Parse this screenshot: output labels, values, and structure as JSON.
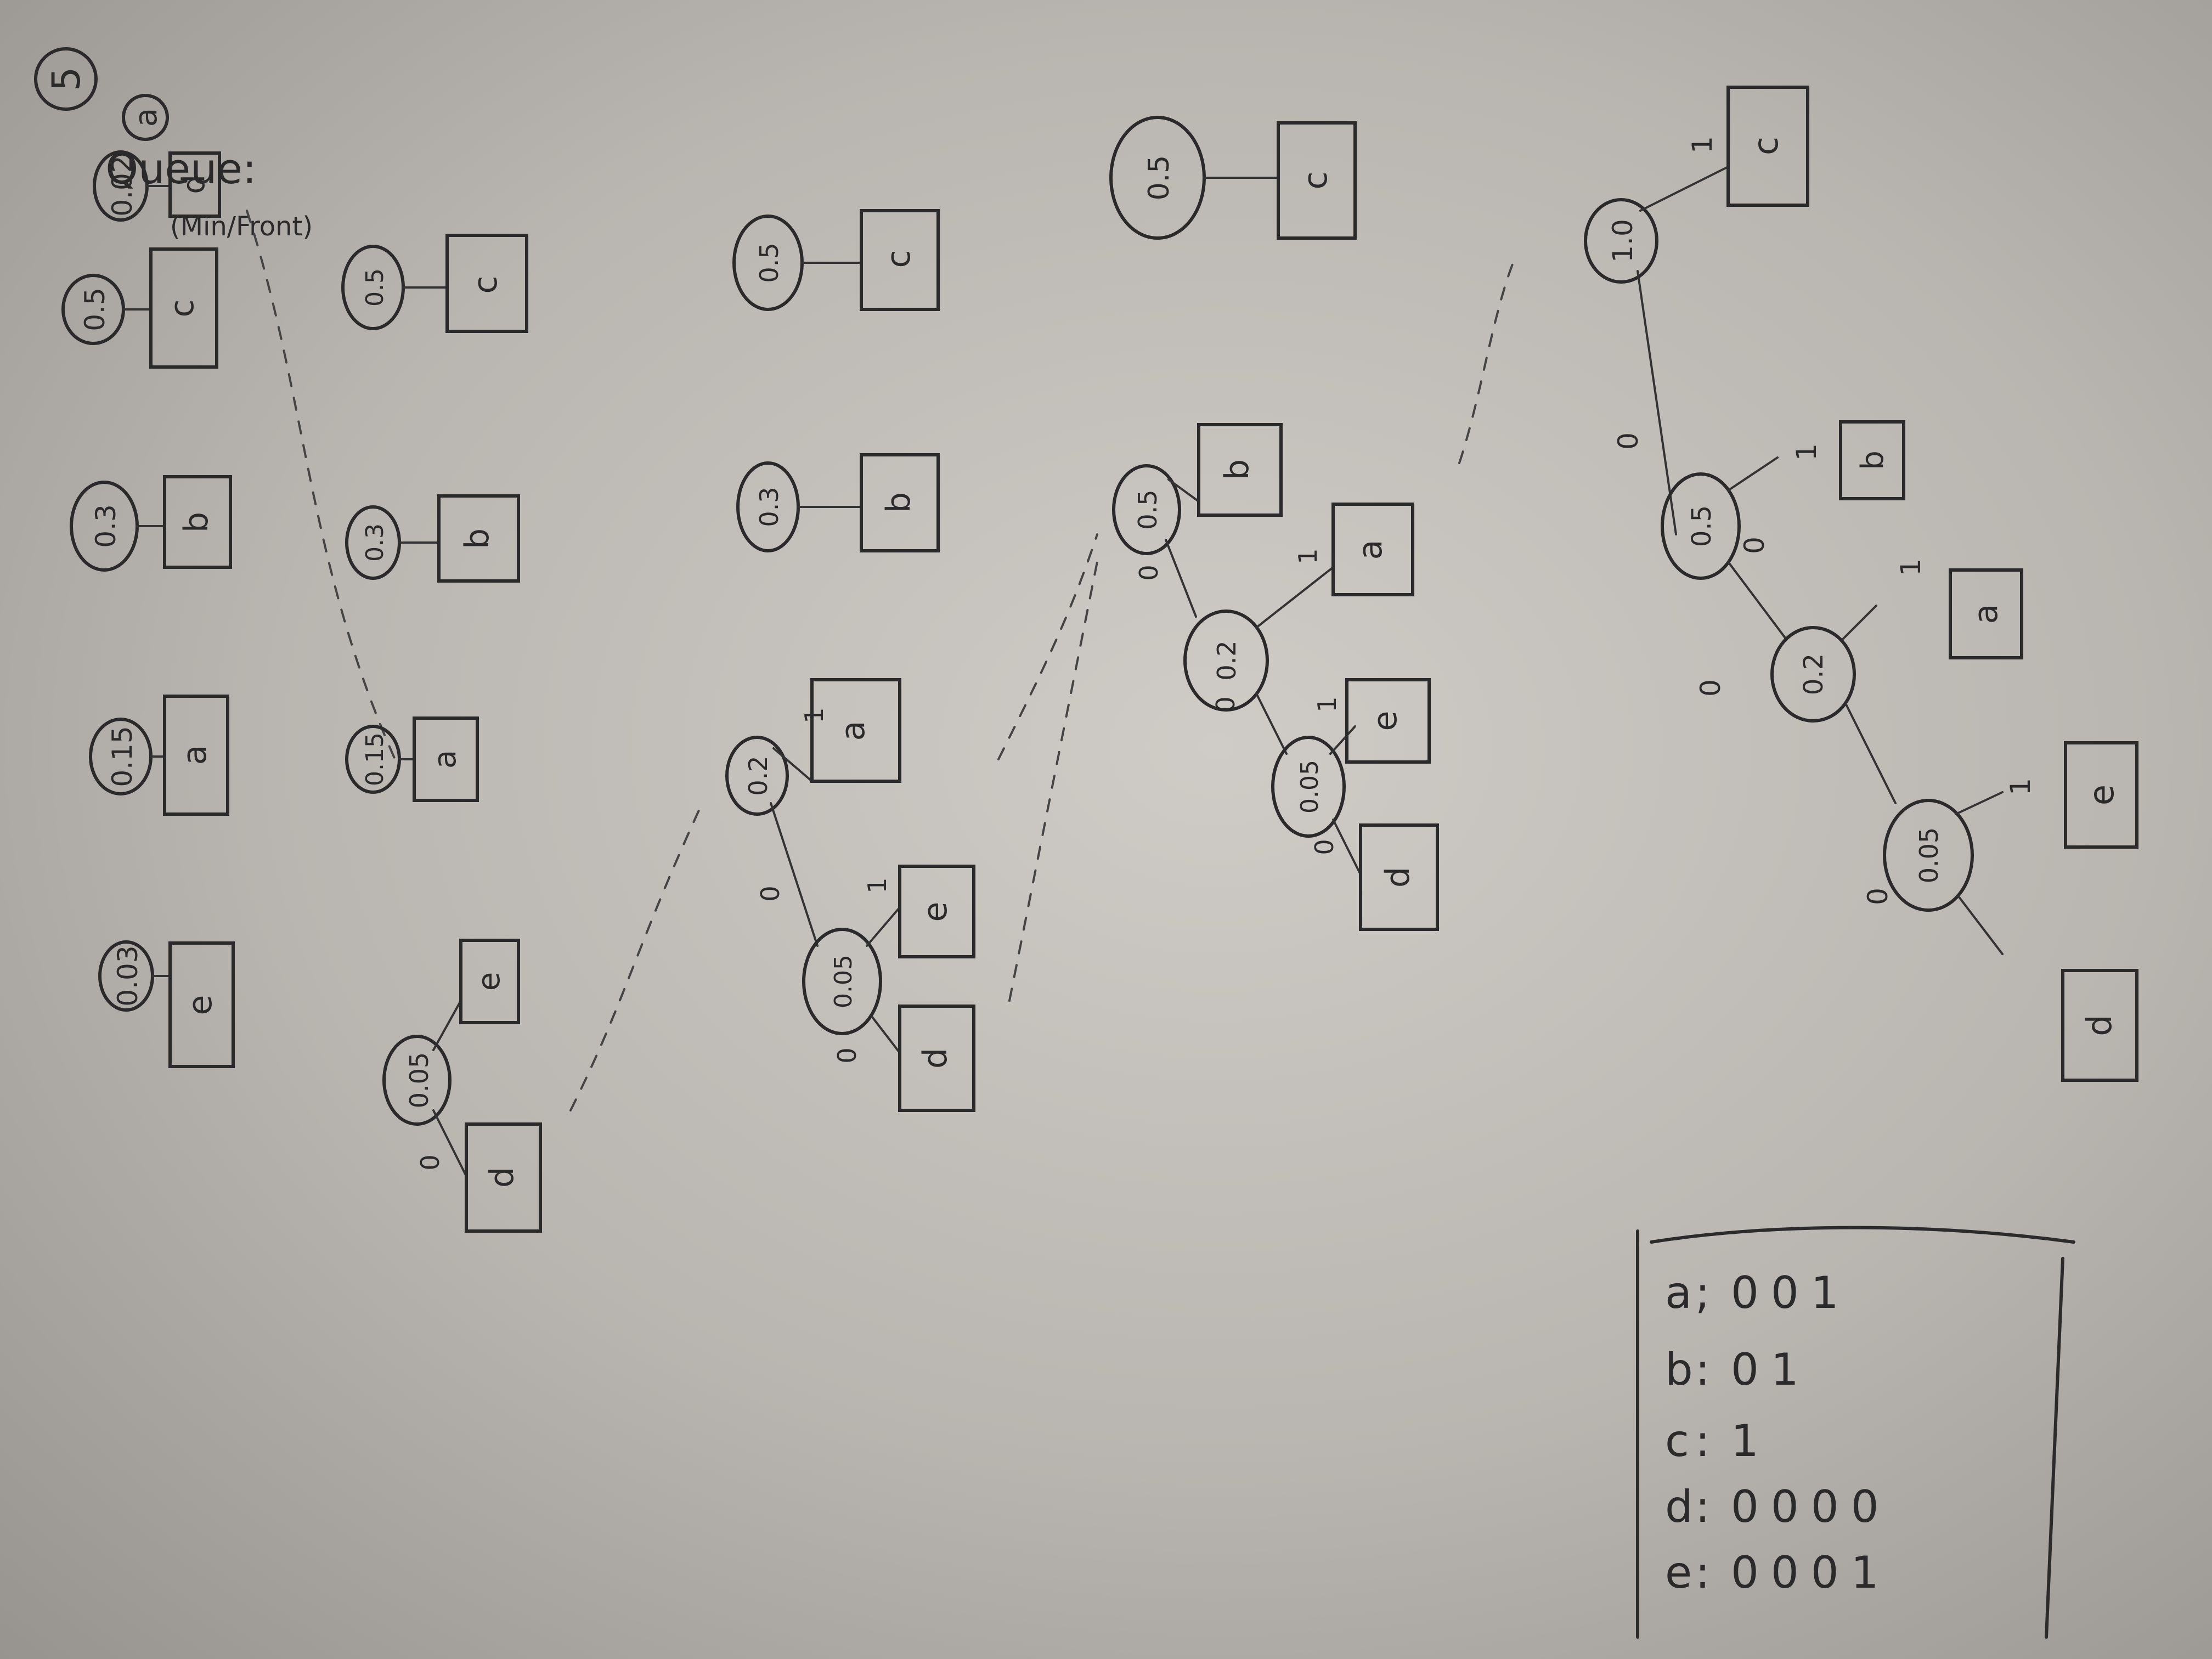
{
  "header": {
    "problem_number": "5",
    "part_letter": "a",
    "queue_label": "Queue:",
    "queue_note": "(Min/Front)"
  },
  "labels": {
    "zero": "0",
    "one": "1"
  },
  "row1": [
    {
      "prob": "0.02",
      "sym": "d"
    },
    {
      "prob": "0.03",
      "sym": "e"
    },
    {
      "prob": "0.15",
      "sym": "a"
    },
    {
      "prob": "0.3",
      "sym": "b"
    },
    {
      "prob": "0.5",
      "sym": "c"
    }
  ],
  "row2": {
    "merged": {
      "prob": "0.05",
      "left": "d",
      "right": "e"
    },
    "rest": [
      {
        "prob": "0.15",
        "sym": "a"
      },
      {
        "prob": "0.3",
        "sym": "b"
      },
      {
        "prob": "0.5",
        "sym": "c"
      }
    ]
  },
  "row3": {
    "root": "0.2",
    "inner": "0.05",
    "leaves": [
      "d",
      "e",
      "a"
    ],
    "rest": [
      {
        "prob": "0.3",
        "sym": "b"
      },
      {
        "prob": "0.5",
        "sym": "c"
      }
    ]
  },
  "row4": {
    "root": "0.5",
    "mid": "0.2",
    "inner": "0.05",
    "leaves": [
      "d",
      "e",
      "a",
      "b"
    ],
    "rest": [
      {
        "prob": "0.5",
        "sym": "c"
      }
    ]
  },
  "row5": {
    "root": "1.0",
    "n1": "0.5",
    "n2": "0.2",
    "n3": "0.05",
    "leaves": [
      "d",
      "e",
      "a",
      "b",
      "c"
    ]
  },
  "codes": [
    {
      "sym": "a",
      "code": "001"
    },
    {
      "sym": "b",
      "code": "01"
    },
    {
      "sym": "c",
      "code": "1"
    },
    {
      "sym": "d",
      "code": "0000"
    },
    {
      "sym": "e",
      "code": "0001"
    }
  ],
  "code_sep": {
    "a": ";",
    "other": ":"
  }
}
